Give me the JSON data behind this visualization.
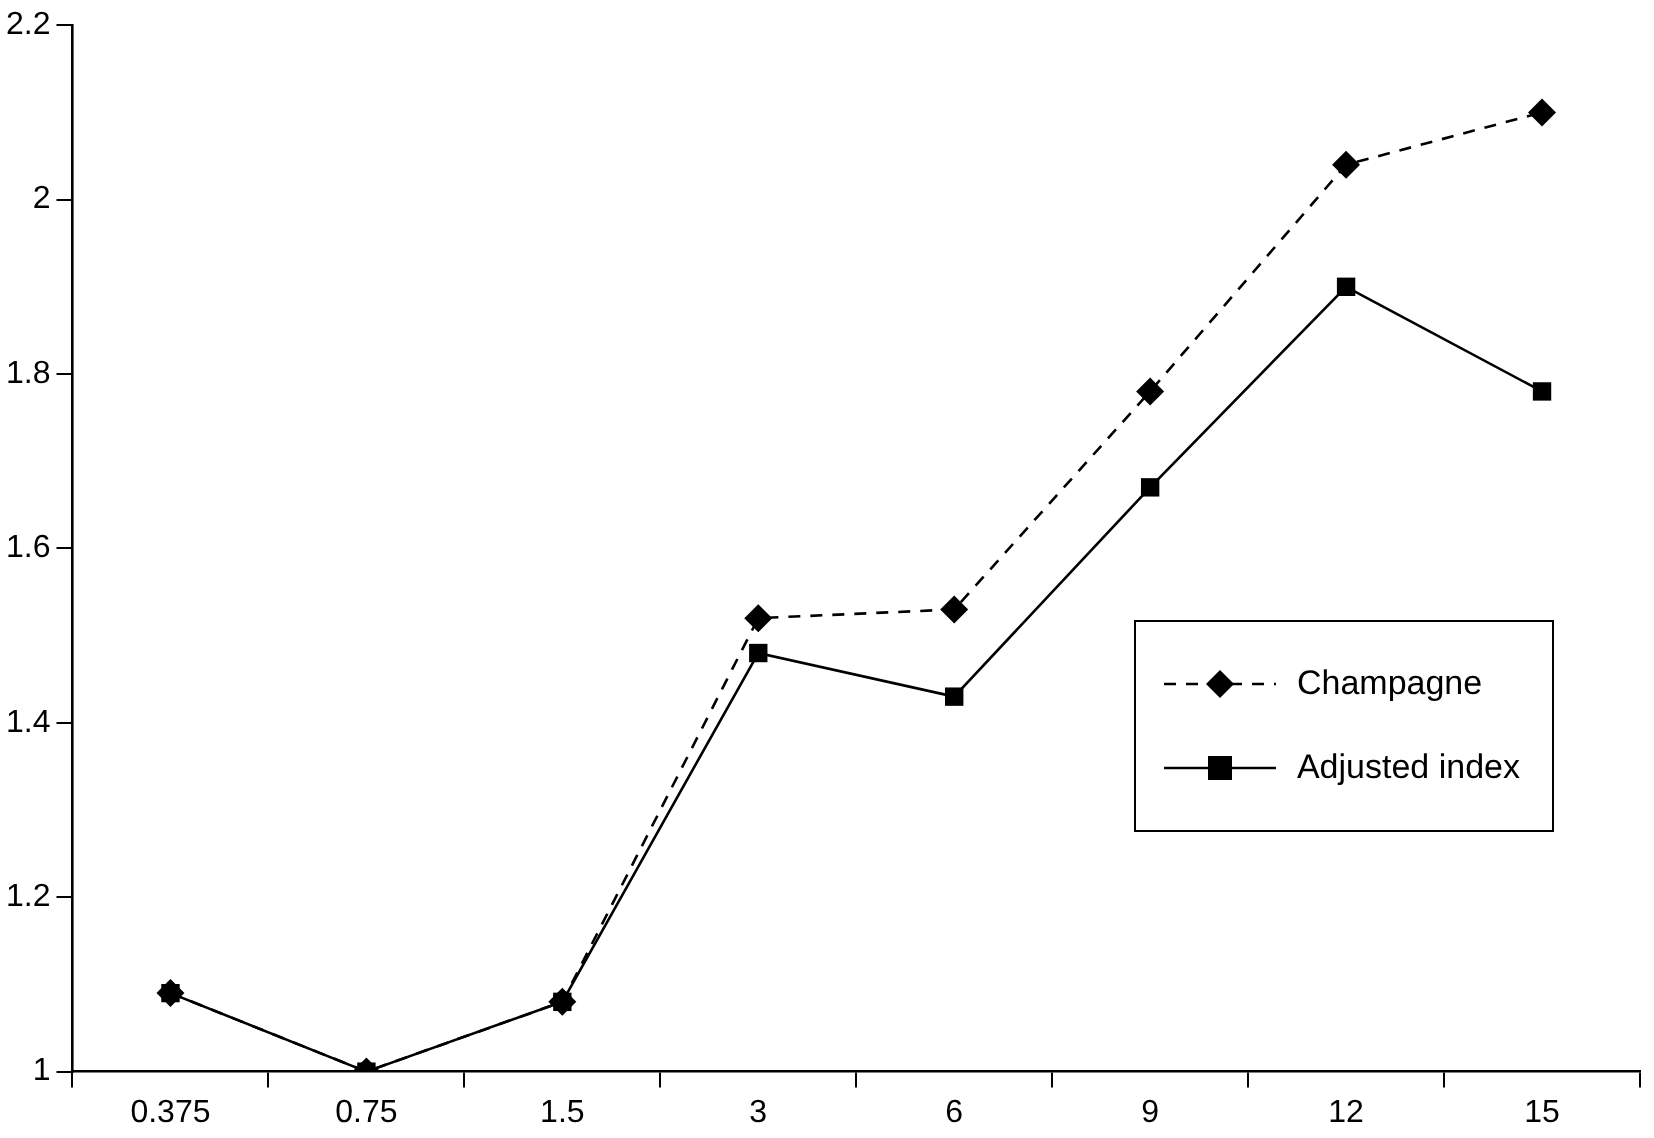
{
  "chart_data": {
    "type": "line",
    "categories": [
      "0.375",
      "0.75",
      "1.5",
      "3",
      "6",
      "9",
      "12",
      "15"
    ],
    "ylim": [
      1,
      2.2
    ],
    "yticks": [
      1,
      1.2,
      1.4,
      1.6,
      1.8,
      2,
      2.2
    ],
    "grid": false,
    "legend": "right",
    "series": [
      {
        "name": "Champagne",
        "color": "#000000",
        "marker": "diamond",
        "line_style": "dashed",
        "values": [
          1.09,
          1.0,
          1.08,
          1.52,
          1.53,
          1.78,
          2.04,
          2.1
        ]
      },
      {
        "name": "Adjusted index",
        "color": "#000000",
        "marker": "square",
        "line_style": "solid",
        "values": [
          1.09,
          1.0,
          1.08,
          1.48,
          1.43,
          1.67,
          1.9,
          1.78
        ]
      }
    ]
  }
}
